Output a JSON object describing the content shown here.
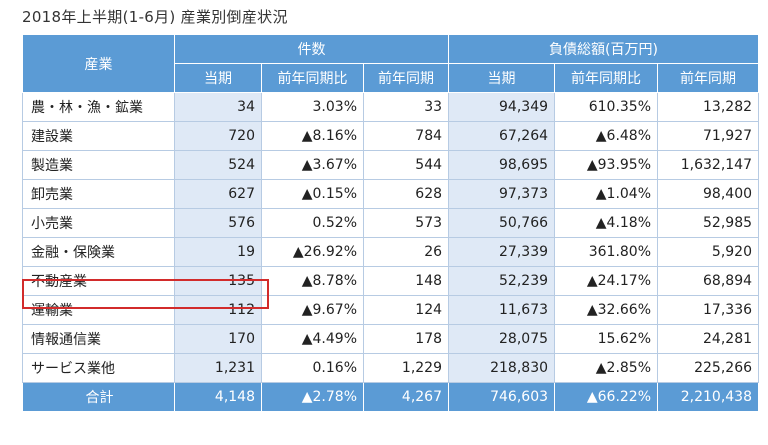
{
  "caption": "2018年上半期(1-6月) 産業別倒産状況",
  "headers": {
    "industry": "産業",
    "count_group": "件数",
    "debt_group": "負債総額(百万円)",
    "sub": [
      "当期",
      "前年同期比",
      "前年同期",
      "当期",
      "前年同期比",
      "前年同期"
    ]
  },
  "rows": [
    {
      "name": "農・林・漁・鉱業",
      "c_cur": "34",
      "c_yoy": "3.03%",
      "c_prev": "33",
      "d_cur": "94,349",
      "d_yoy": "610.35%",
      "d_prev": "13,282"
    },
    {
      "name": "建設業",
      "c_cur": "720",
      "c_yoy": "▲8.16%",
      "c_prev": "784",
      "d_cur": "67,264",
      "d_yoy": "▲6.48%",
      "d_prev": "71,927"
    },
    {
      "name": "製造業",
      "c_cur": "524",
      "c_yoy": "▲3.67%",
      "c_prev": "544",
      "d_cur": "98,695",
      "d_yoy": "▲93.95%",
      "d_prev": "1,632,147"
    },
    {
      "name": "卸売業",
      "c_cur": "627",
      "c_yoy": "▲0.15%",
      "c_prev": "628",
      "d_cur": "97,373",
      "d_yoy": "▲1.04%",
      "d_prev": "98,400"
    },
    {
      "name": "小売業",
      "c_cur": "576",
      "c_yoy": "0.52%",
      "c_prev": "573",
      "d_cur": "50,766",
      "d_yoy": "▲4.18%",
      "d_prev": "52,985"
    },
    {
      "name": "金融・保険業",
      "c_cur": "19",
      "c_yoy": "▲26.92%",
      "c_prev": "26",
      "d_cur": "27,339",
      "d_yoy": "361.80%",
      "d_prev": "5,920"
    },
    {
      "name": "不動産業",
      "c_cur": "135",
      "c_yoy": "▲8.78%",
      "c_prev": "148",
      "d_cur": "52,239",
      "d_yoy": "▲24.17%",
      "d_prev": "68,894"
    },
    {
      "name": "運輸業",
      "c_cur": "112",
      "c_yoy": "▲9.67%",
      "c_prev": "124",
      "d_cur": "11,673",
      "d_yoy": "▲32.66%",
      "d_prev": "17,336"
    },
    {
      "name": "情報通信業",
      "c_cur": "170",
      "c_yoy": "▲4.49%",
      "c_prev": "178",
      "d_cur": "28,075",
      "d_yoy": "15.62%",
      "d_prev": "24,281"
    },
    {
      "name": "サービス業他",
      "c_cur": "1,231",
      "c_yoy": "0.16%",
      "c_prev": "1,229",
      "d_cur": "218,830",
      "d_yoy": "▲2.85%",
      "d_prev": "225,266"
    }
  ],
  "total": {
    "name": "合計",
    "c_cur": "4,148",
    "c_yoy": "▲2.78%",
    "c_prev": "4,267",
    "d_cur": "746,603",
    "d_yoy": "▲66.22%",
    "d_prev": "2,210,438"
  },
  "highlighted_row": "不動産業",
  "colors": {
    "header_bg": "#5b9bd5",
    "shade": "#dfe9f6",
    "highlight": "#d22b2b"
  }
}
